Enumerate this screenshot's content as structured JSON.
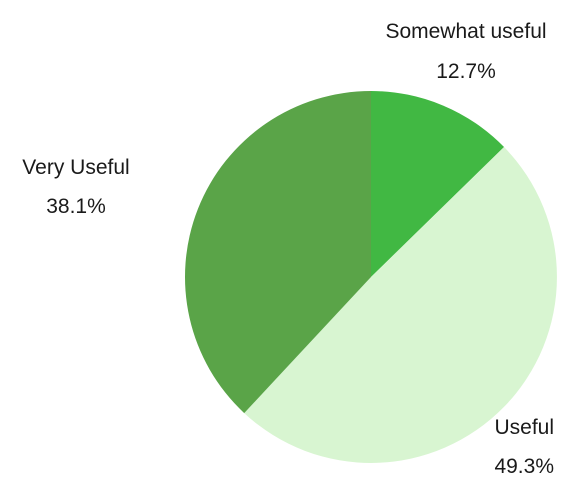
{
  "chart_data": {
    "type": "pie",
    "slices": [
      {
        "label": "Somewhat useful",
        "percent_text": "12.7%",
        "value": 12.7,
        "color": "#41b843"
      },
      {
        "label": "Useful",
        "percent_text": "49.3%",
        "value": 49.3,
        "color": "#d8f5d1"
      },
      {
        "label": "Very Useful",
        "percent_text": "38.1%",
        "value": 38.1,
        "color": "#5aa448"
      }
    ],
    "start_angle": "12 o'clock",
    "direction": "clockwise",
    "legend": "none"
  }
}
